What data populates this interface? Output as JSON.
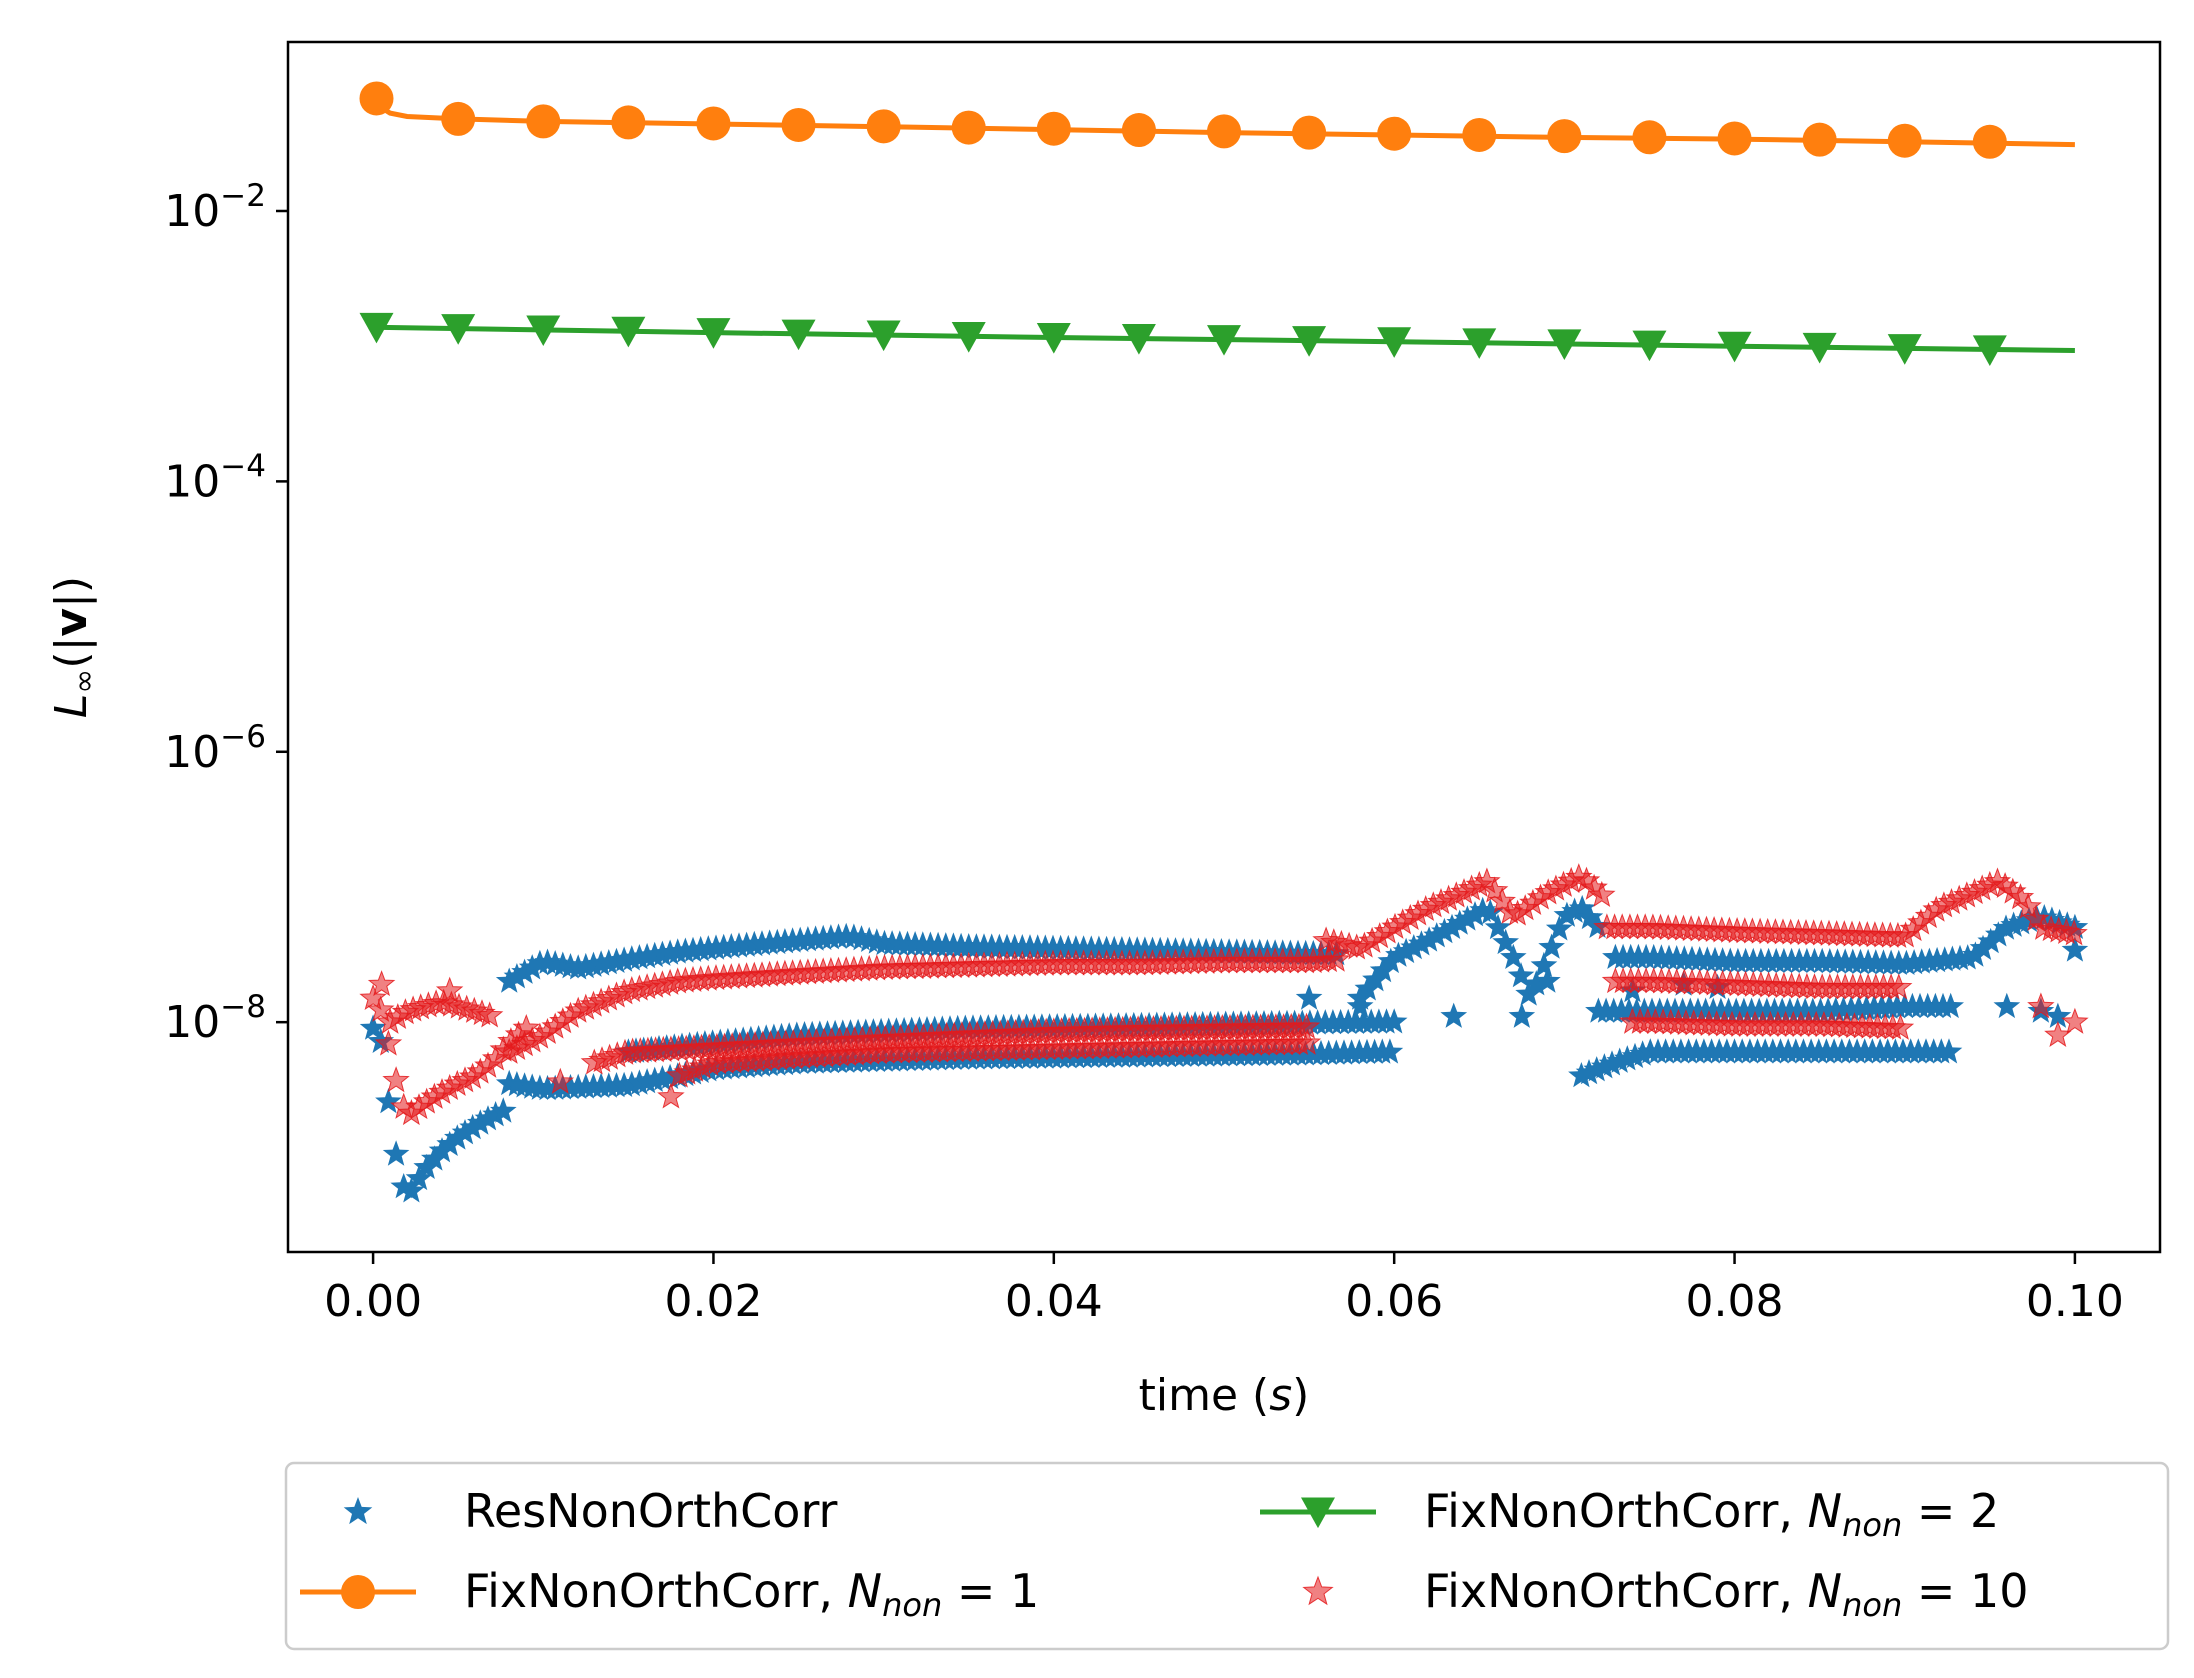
{
  "chart_data": {
    "type": "line",
    "title": "",
    "xlabel": {
      "text": "time (",
      "var": "s",
      "close": ")"
    },
    "ylabel": {
      "sym": "L",
      "sub": "∞",
      "open": "(|",
      "vec": "v",
      "close": "|)"
    },
    "yscale": "log",
    "xlim": [
      -0.005,
      0.105
    ],
    "ylim_log10": [
      -9.7,
      -0.75
    ],
    "x_ticks": [
      0.0,
      0.02,
      0.04,
      0.06,
      0.08,
      0.1
    ],
    "x_tick_labels": [
      "0.00",
      "0.02",
      "0.04",
      "0.06",
      "0.08",
      "0.10"
    ],
    "y_ticks_log10": [
      -8,
      -6,
      -4,
      -2
    ],
    "y_tick_labels": [
      {
        "base": "10",
        "exp": "−8"
      },
      {
        "base": "10",
        "exp": "−6"
      },
      {
        "base": "10",
        "exp": "−4"
      },
      {
        "base": "10",
        "exp": "−2"
      }
    ],
    "grid": false,
    "legend_placement": "below the plot, two columns",
    "legend": [
      {
        "prefix": "ResNonOrthCorr",
        "math": "",
        "value": "",
        "marker": "star",
        "line": false,
        "color": "#1f77b4"
      },
      {
        "prefix": "FixNonOrthCorr, ",
        "math": "N",
        "sub": "non",
        "value": " = 1",
        "marker": "circle",
        "line": true,
        "color": "#ff7f0e"
      },
      {
        "prefix": "FixNonOrthCorr, ",
        "math": "N",
        "sub": "non",
        "value": " = 2",
        "marker": "triangle-down",
        "line": true,
        "color": "#2ca02c"
      },
      {
        "prefix": "FixNonOrthCorr, ",
        "math": "N",
        "sub": "non",
        "value": " = 10",
        "marker": "star",
        "line": false,
        "color": "#e41a1c"
      }
    ],
    "series": [
      {
        "name": "FixNonOrthCorr, N_non = 1",
        "color": "#ff7f0e",
        "marker": "circle",
        "line_x": [
          0.0,
          0.0005,
          0.001,
          0.002,
          0.005,
          0.01,
          0.02,
          0.03,
          0.04,
          0.05,
          0.06,
          0.07,
          0.08,
          0.09,
          0.1
        ],
        "line_y": [
          0.068,
          0.058,
          0.053,
          0.05,
          0.048,
          0.046,
          0.044,
          0.042,
          0.04,
          0.038,
          0.0365,
          0.035,
          0.034,
          0.0325,
          0.031
        ],
        "marker_x": [
          0.0002,
          0.005,
          0.01,
          0.015,
          0.02,
          0.025,
          0.03,
          0.035,
          0.04,
          0.045,
          0.05,
          0.055,
          0.06,
          0.065,
          0.07,
          0.075,
          0.08,
          0.085,
          0.09,
          0.095
        ],
        "marker_y": [
          0.068,
          0.048,
          0.046,
          0.0452,
          0.0444,
          0.0433,
          0.0423,
          0.0414,
          0.0406,
          0.0397,
          0.0388,
          0.038,
          0.0373,
          0.0365,
          0.0358,
          0.0351,
          0.0344,
          0.0337,
          0.0331,
          0.0325
        ]
      },
      {
        "name": "FixNonOrthCorr, N_non = 2",
        "color": "#2ca02c",
        "marker": "triangle-down",
        "line_x": [
          0.0,
          0.02,
          0.04,
          0.06,
          0.08,
          0.1
        ],
        "line_y": [
          0.00138,
          0.00126,
          0.00116,
          0.00108,
          0.001,
          0.00093
        ],
        "marker_x": [
          0.0002,
          0.005,
          0.01,
          0.015,
          0.02,
          0.025,
          0.03,
          0.035,
          0.04,
          0.045,
          0.05,
          0.055,
          0.06,
          0.065,
          0.07,
          0.075,
          0.08,
          0.085,
          0.09,
          0.095
        ],
        "marker_y": [
          0.00138,
          0.00135,
          0.00132,
          0.00129,
          0.00126,
          0.00123,
          0.00121,
          0.00118,
          0.00116,
          0.00114,
          0.00112,
          0.0011,
          0.00108,
          0.00106,
          0.00104,
          0.00102,
          0.001,
          0.00098,
          0.00096,
          0.00094
        ]
      },
      {
        "name": "ResNonOrthCorr",
        "color": "#1f77b4",
        "marker": "star",
        "bands": [
          {
            "x": [
              0.0,
              0.0005,
              0.001,
              0.0015,
              0.002,
              0.003,
              0.004,
              0.005,
              0.006,
              0.007,
              0.008
            ],
            "y": [
              9e-09,
              7e-09,
              2e-09,
              8e-10,
              5e-10,
              8e-10,
              1.1e-09,
              1.4e-09,
              1.7e-09,
              2e-09,
              2.3e-09
            ]
          },
          {
            "x": [
              0.008,
              0.01,
              0.012,
              0.015,
              0.018,
              0.02,
              0.025,
              0.028,
              0.03,
              0.035,
              0.04,
              0.045,
              0.05,
              0.055,
              0.057
            ],
            "y": [
              2e-08,
              2.8e-08,
              2.5e-08,
              2.9e-08,
              3.3e-08,
              3.5e-08,
              4e-08,
              4.3e-08,
              3.8e-08,
              3.6e-08,
              3.5e-08,
              3.4e-08,
              3.3e-08,
              3.2e-08,
              3.2e-08
            ]
          },
          {
            "x": [
              0.008,
              0.01,
              0.015,
              0.018,
              0.02,
              0.025,
              0.03,
              0.035,
              0.04,
              0.045,
              0.05,
              0.055,
              0.06
            ],
            "y": [
              3.5e-09,
              3.2e-09,
              3.4e-09,
              4e-09,
              4.5e-09,
              5e-09,
              5.2e-09,
              5.4e-09,
              5.5e-09,
              5.6e-09,
              5.7e-09,
              5.8e-09,
              6e-09
            ]
          },
          {
            "x": [
              0.015,
              0.02,
              0.025,
              0.03,
              0.035,
              0.04,
              0.045,
              0.05,
              0.055,
              0.06
            ],
            "y": [
              6e-09,
              7e-09,
              8e-09,
              8.5e-09,
              9e-09,
              9.2e-09,
              9.4e-09,
              9.6e-09,
              9.8e-09,
              1e-08
            ]
          },
          {
            "x": [
              0.058,
              0.06,
              0.062,
              0.064,
              0.0655,
              0.067,
              0.068,
              0.07,
              0.071,
              0.072
            ],
            "y": [
              1.5e-08,
              3e-08,
              4e-08,
              5.5e-08,
              7e-08,
              3e-08,
              1.5e-08,
              6e-08,
              7e-08,
              5e-08
            ]
          },
          {
            "x": [
              0.071,
              0.073,
              0.075,
              0.08,
              0.085,
              0.09,
              0.093
            ],
            "y": [
              4e-09,
              5e-09,
              6e-09,
              6e-09,
              6e-09,
              6e-09,
              6e-09
            ]
          },
          {
            "x": [
              0.072,
              0.075,
              0.08,
              0.085,
              0.09,
              0.093
            ],
            "y": [
              1.2e-08,
              1.2e-08,
              1.2e-08,
              1.2e-08,
              1.3e-08,
              1.3e-08
            ]
          },
          {
            "x": [
              0.073,
              0.075,
              0.08,
              0.085,
              0.09,
              0.094,
              0.096,
              0.098,
              0.1
            ],
            "y": [
              3e-08,
              3e-08,
              2.8e-08,
              2.8e-08,
              2.7e-08,
              3e-08,
              5e-08,
              6e-08,
              5e-08
            ]
          }
        ],
        "extra_x": [
          0.055,
          0.058,
          0.0635,
          0.0675,
          0.069,
          0.074,
          0.077,
          0.079,
          0.096,
          0.098,
          0.1,
          0.099
        ],
        "extra_y": [
          1.5e-08,
          1.3e-08,
          1.1e-08,
          1.1e-08,
          2e-08,
          1.7e-08,
          1.9e-08,
          1.8e-08,
          1.3e-08,
          1.2e-08,
          3.4e-08,
          1.1e-08
        ]
      },
      {
        "name": "FixNonOrthCorr, N_non = 10",
        "color": "#e41a1c",
        "marker": "star",
        "bands": [
          {
            "x": [
              0.0,
              0.0005,
              0.001,
              0.0015,
              0.002,
              0.003,
              0.004,
              0.005,
              0.006,
              0.007,
              0.008,
              0.009
            ],
            "y": [
              1.5e-08,
              1.2e-08,
              6e-09,
              3e-09,
              2e-09,
              2.5e-09,
              3e-09,
              3.5e-09,
              4e-09,
              5e-09,
              7e-09,
              9e-09
            ]
          },
          {
            "x": [
              0.001,
              0.002,
              0.003,
              0.004,
              0.005,
              0.006,
              0.007
            ],
            "y": [
              1e-08,
              1.2e-08,
              1.3e-08,
              1.4e-08,
              1.3e-08,
              1.2e-08,
              1.1e-08
            ]
          },
          {
            "x": [
              0.008,
              0.01,
              0.012,
              0.015,
              0.018,
              0.02,
              0.025,
              0.03,
              0.035,
              0.04,
              0.045,
              0.05,
              0.055,
              0.057
            ],
            "y": [
              6e-09,
              8e-09,
              1.2e-08,
              1.7e-08,
              2e-08,
              2.1e-08,
              2.3e-08,
              2.5e-08,
              2.6e-08,
              2.7e-08,
              2.7e-08,
              2.8e-08,
              2.8e-08,
              2.9e-08
            ]
          },
          {
            "x": [
              0.013,
              0.015,
              0.02,
              0.025,
              0.03,
              0.035,
              0.04,
              0.045,
              0.05,
              0.055
            ],
            "y": [
              5e-09,
              6e-09,
              6.5e-09,
              7e-09,
              7.5e-09,
              8e-09,
              8.5e-09,
              8.8e-09,
              9e-09,
              9.2e-09
            ]
          },
          {
            "x": [
              0.018,
              0.02,
              0.025,
              0.03,
              0.035,
              0.04,
              0.045,
              0.05,
              0.055
            ],
            "y": [
              4e-09,
              5e-09,
              5.5e-09,
              6e-09,
              6.2e-09,
              6.4e-09,
              6.6e-09,
              6.8e-09,
              7e-09
            ]
          },
          {
            "x": [
              0.056,
              0.058,
              0.06,
              0.062,
              0.064,
              0.0655,
              0.067,
              0.069,
              0.071,
              0.0725
            ],
            "y": [
              4e-08,
              3.5e-08,
              5e-08,
              7e-08,
              9e-08,
              1.1e-07,
              6e-08,
              9e-08,
              1.2e-07,
              8e-08
            ]
          },
          {
            "x": [
              0.0725,
              0.075,
              0.08,
              0.085,
              0.09,
              0.092,
              0.094,
              0.0955,
              0.097,
              0.098,
              0.1
            ],
            "y": [
              5e-08,
              5e-08,
              4.7e-08,
              4.5e-08,
              4.3e-08,
              7e-08,
              9e-08,
              1.1e-07,
              8e-08,
              5e-08,
              4.5e-08
            ]
          },
          {
            "x": [
              0.073,
              0.075,
              0.08,
              0.085,
              0.09
            ],
            "y": [
              2e-08,
              2e-08,
              1.9e-08,
              1.8e-08,
              1.8e-08
            ]
          },
          {
            "x": [
              0.074,
              0.075,
              0.08,
              0.085,
              0.09
            ],
            "y": [
              1e-08,
              1e-08,
              9.5e-09,
              9.5e-09,
              9e-09
            ]
          }
        ],
        "extra_x": [
          0.0175,
          0.011,
          0.0005,
          0.0045,
          0.099,
          0.1,
          0.098
        ],
        "extra_y": [
          2.8e-09,
          3.6e-09,
          1.9e-08,
          1.7e-08,
          8e-09,
          1e-08,
          1.3e-08
        ]
      }
    ]
  }
}
